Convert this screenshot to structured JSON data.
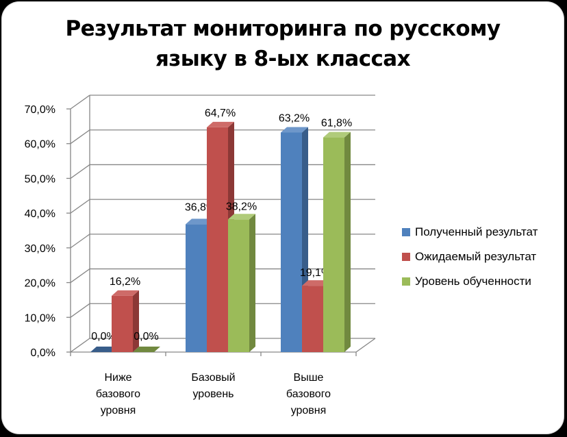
{
  "chart_data": {
    "type": "bar",
    "title_lines": [
      "Результат мониторинга по русскому",
      "языку в 8-ых классах"
    ],
    "categories": [
      [
        "Ниже",
        "базового",
        "уровня"
      ],
      [
        "Базовый",
        "уровень"
      ],
      [
        "Выше",
        "базового",
        "уровня"
      ]
    ],
    "series": [
      {
        "name": "Полученный результат",
        "values": [
          0.0,
          36.8,
          63.2
        ],
        "labels": [
          "0,0%",
          "36,8%",
          "63,2%"
        ]
      },
      {
        "name": "Ожидаемый результат",
        "values": [
          16.2,
          64.7,
          19.1
        ],
        "labels": [
          "16,2%",
          "64,7%",
          "19,1%"
        ]
      },
      {
        "name": "Уровень обученности",
        "values": [
          0.0,
          38.2,
          61.8
        ],
        "labels": [
          "0,0%",
          "38,2%",
          "61,8%"
        ]
      }
    ],
    "ylim": [
      0,
      70
    ],
    "yticks": [
      "0,0%",
      "10,0%",
      "20,0%",
      "30,0%",
      "40,0%",
      "50,0%",
      "60,0%",
      "70,0%"
    ],
    "grid": true,
    "legend_position": "right",
    "colors": {
      "series_front": [
        "#4F81BD",
        "#C0504D",
        "#9BBB59"
      ],
      "series_side": [
        "#385D8A",
        "#8C3836",
        "#71893F"
      ],
      "series_top": [
        "#6E97CA",
        "#CE6B68",
        "#B0CB7A"
      ]
    }
  }
}
